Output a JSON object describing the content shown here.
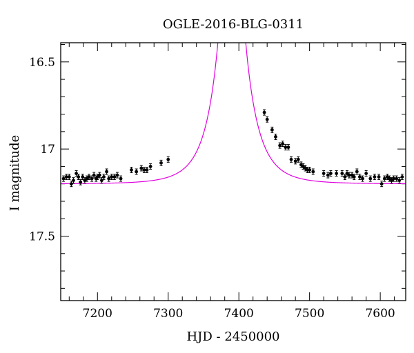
{
  "chart_data": {
    "type": "scatter",
    "title": "OGLE-2016-BLG-0311",
    "xlabel": "HJD - 2450000",
    "ylabel": "I magnitude",
    "xlim": [
      7148,
      7636
    ],
    "ylim": [
      17.87,
      16.39
    ],
    "y_inverted": true,
    "x_ticks": [
      7200,
      7300,
      7400,
      7500,
      7600
    ],
    "x_tick_labels": [
      "7200",
      "7300",
      "7400",
      "7500",
      "7600"
    ],
    "y_ticks": [
      16.5,
      17,
      17.5
    ],
    "y_tick_labels": [
      "16.5",
      "17",
      "17.5"
    ],
    "grid": false,
    "colors": {
      "model": "#e000e0",
      "points": "#000000"
    },
    "model": {
      "name": "",
      "t0": 7390,
      "baseline_mag": 17.2,
      "tE": 38,
      "u0": 0.037
    },
    "series": [
      {
        "name": "",
        "points": [
          [
            7152,
            17.17
          ],
          [
            7156,
            17.16
          ],
          [
            7160,
            17.16
          ],
          [
            7163,
            17.2
          ],
          [
            7166,
            17.18
          ],
          [
            7170,
            17.14
          ],
          [
            7173,
            17.16
          ],
          [
            7176,
            17.19
          ],
          [
            7179,
            17.16
          ],
          [
            7182,
            17.18
          ],
          [
            7185,
            17.17
          ],
          [
            7188,
            17.16
          ],
          [
            7192,
            17.17
          ],
          [
            7195,
            17.15
          ],
          [
            7198,
            17.17
          ],
          [
            7200,
            17.16
          ],
          [
            7203,
            17.15
          ],
          [
            7206,
            17.18
          ],
          [
            7209,
            17.16
          ],
          [
            7213,
            17.13
          ],
          [
            7216,
            17.17
          ],
          [
            7220,
            17.16
          ],
          [
            7224,
            17.16
          ],
          [
            7228,
            17.15
          ],
          [
            7233,
            17.17
          ],
          [
            7248,
            17.12
          ],
          [
            7255,
            17.13
          ],
          [
            7262,
            17.11
          ],
          [
            7266,
            17.12
          ],
          [
            7270,
            17.12
          ],
          [
            7275,
            17.1
          ],
          [
            7290,
            17.08
          ],
          [
            7300,
            17.06
          ],
          [
            7436,
            16.79
          ],
          [
            7440,
            16.83
          ],
          [
            7447,
            16.89
          ],
          [
            7452,
            16.93
          ],
          [
            7458,
            16.98
          ],
          [
            7462,
            16.97
          ],
          [
            7466,
            16.99
          ],
          [
            7470,
            16.99
          ],
          [
            7474,
            17.06
          ],
          [
            7480,
            17.07
          ],
          [
            7484,
            17.06
          ],
          [
            7488,
            17.09
          ],
          [
            7491,
            17.1
          ],
          [
            7494,
            17.11
          ],
          [
            7497,
            17.12
          ],
          [
            7500,
            17.12
          ],
          [
            7505,
            17.13
          ],
          [
            7520,
            17.14
          ],
          [
            7526,
            17.15
          ],
          [
            7530,
            17.14
          ],
          [
            7538,
            17.14
          ],
          [
            7546,
            17.14
          ],
          [
            7550,
            17.16
          ],
          [
            7553,
            17.14
          ],
          [
            7556,
            17.15
          ],
          [
            7560,
            17.15
          ],
          [
            7563,
            17.16
          ],
          [
            7567,
            17.13
          ],
          [
            7571,
            17.16
          ],
          [
            7575,
            17.17
          ],
          [
            7580,
            17.14
          ],
          [
            7586,
            17.17
          ],
          [
            7592,
            17.16
          ],
          [
            7598,
            17.16
          ],
          [
            7602,
            17.2
          ],
          [
            7606,
            17.17
          ],
          [
            7610,
            17.16
          ],
          [
            7613,
            17.17
          ],
          [
            7616,
            17.18
          ],
          [
            7619,
            17.17
          ],
          [
            7623,
            17.17
          ],
          [
            7627,
            17.18
          ],
          [
            7631,
            17.16
          ]
        ]
      }
    ]
  }
}
